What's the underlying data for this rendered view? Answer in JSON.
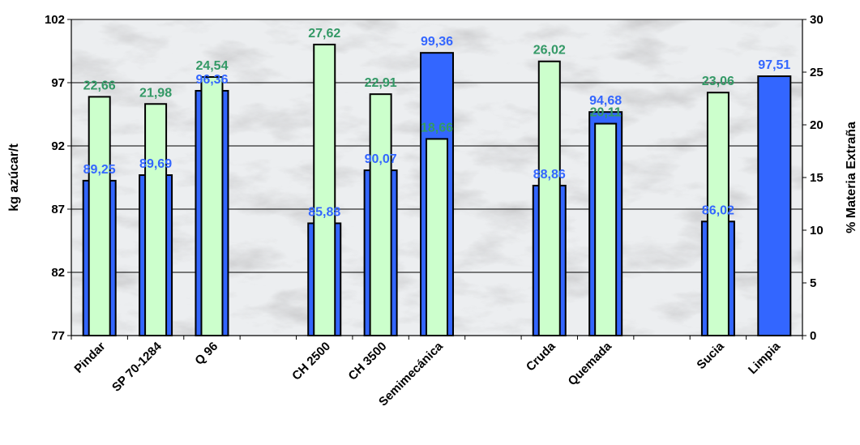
{
  "chart_data": {
    "type": "bar",
    "categories": [
      "Pindar",
      "SP 70-1284",
      "Q 96",
      "",
      "CH 2500",
      "CH 3500",
      "Semimecánica",
      "",
      "Cruda",
      "Quemada",
      "",
      "Sucia",
      "Limpia"
    ],
    "series": [
      {
        "axis": "left",
        "color": "#3366ff",
        "values": [
          89.25,
          89.69,
          96.36,
          null,
          85.88,
          90.07,
          99.36,
          null,
          88.86,
          94.68,
          null,
          86.02,
          97.51
        ],
        "labels": [
          "89,25",
          "89,69",
          "96,36",
          "",
          "85,88",
          "90,07",
          "99,36",
          "",
          "88,86",
          "94,68",
          "",
          "86,02",
          "97,51"
        ]
      },
      {
        "axis": "right",
        "color": "#ccffcc",
        "values": [
          22.66,
          21.98,
          24.54,
          null,
          27.62,
          22.91,
          18.66,
          null,
          26.02,
          20.11,
          null,
          23.06,
          null
        ],
        "labels": [
          "22,66",
          "21,98",
          "24,54",
          "",
          "27,62",
          "22,91",
          "18,66",
          "",
          "26,02",
          "20,11",
          "",
          "23,06",
          ""
        ]
      }
    ],
    "ylabel": "kg azúcar/t",
    "y2label": "% Materia Extraña",
    "ylim": [
      77,
      102
    ],
    "y2lim": [
      0,
      30
    ],
    "yticks": [
      "77",
      "82",
      "87",
      "92",
      "97",
      "102"
    ],
    "y2ticks": [
      "0",
      "5",
      "10",
      "15",
      "20",
      "25",
      "30"
    ],
    "grid": true,
    "label_colors": {
      "left": "#3366ff",
      "right": "#339966"
    }
  }
}
